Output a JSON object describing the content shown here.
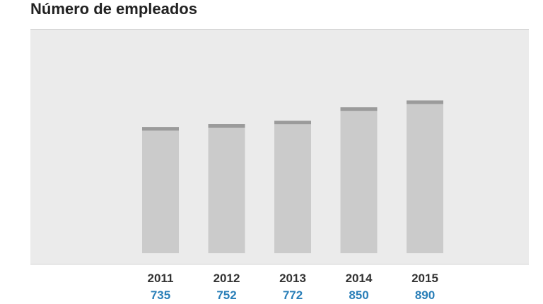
{
  "chart_data": {
    "type": "bar",
    "title": "Número de empleados",
    "categories": [
      "2011",
      "2012",
      "2013",
      "2014",
      "2015"
    ],
    "values": [
      735,
      752,
      772,
      850,
      890
    ],
    "value_labels": [
      "735",
      "752",
      "772",
      "850",
      "890"
    ],
    "xlabel": "",
    "ylabel": "",
    "grid": false,
    "colors": {
      "bar": "#cbcbcb",
      "bar_top": "#9b9b9b",
      "background": "#ebebeb",
      "value_text": "#2a7fb8",
      "category_text": "#333333"
    }
  }
}
